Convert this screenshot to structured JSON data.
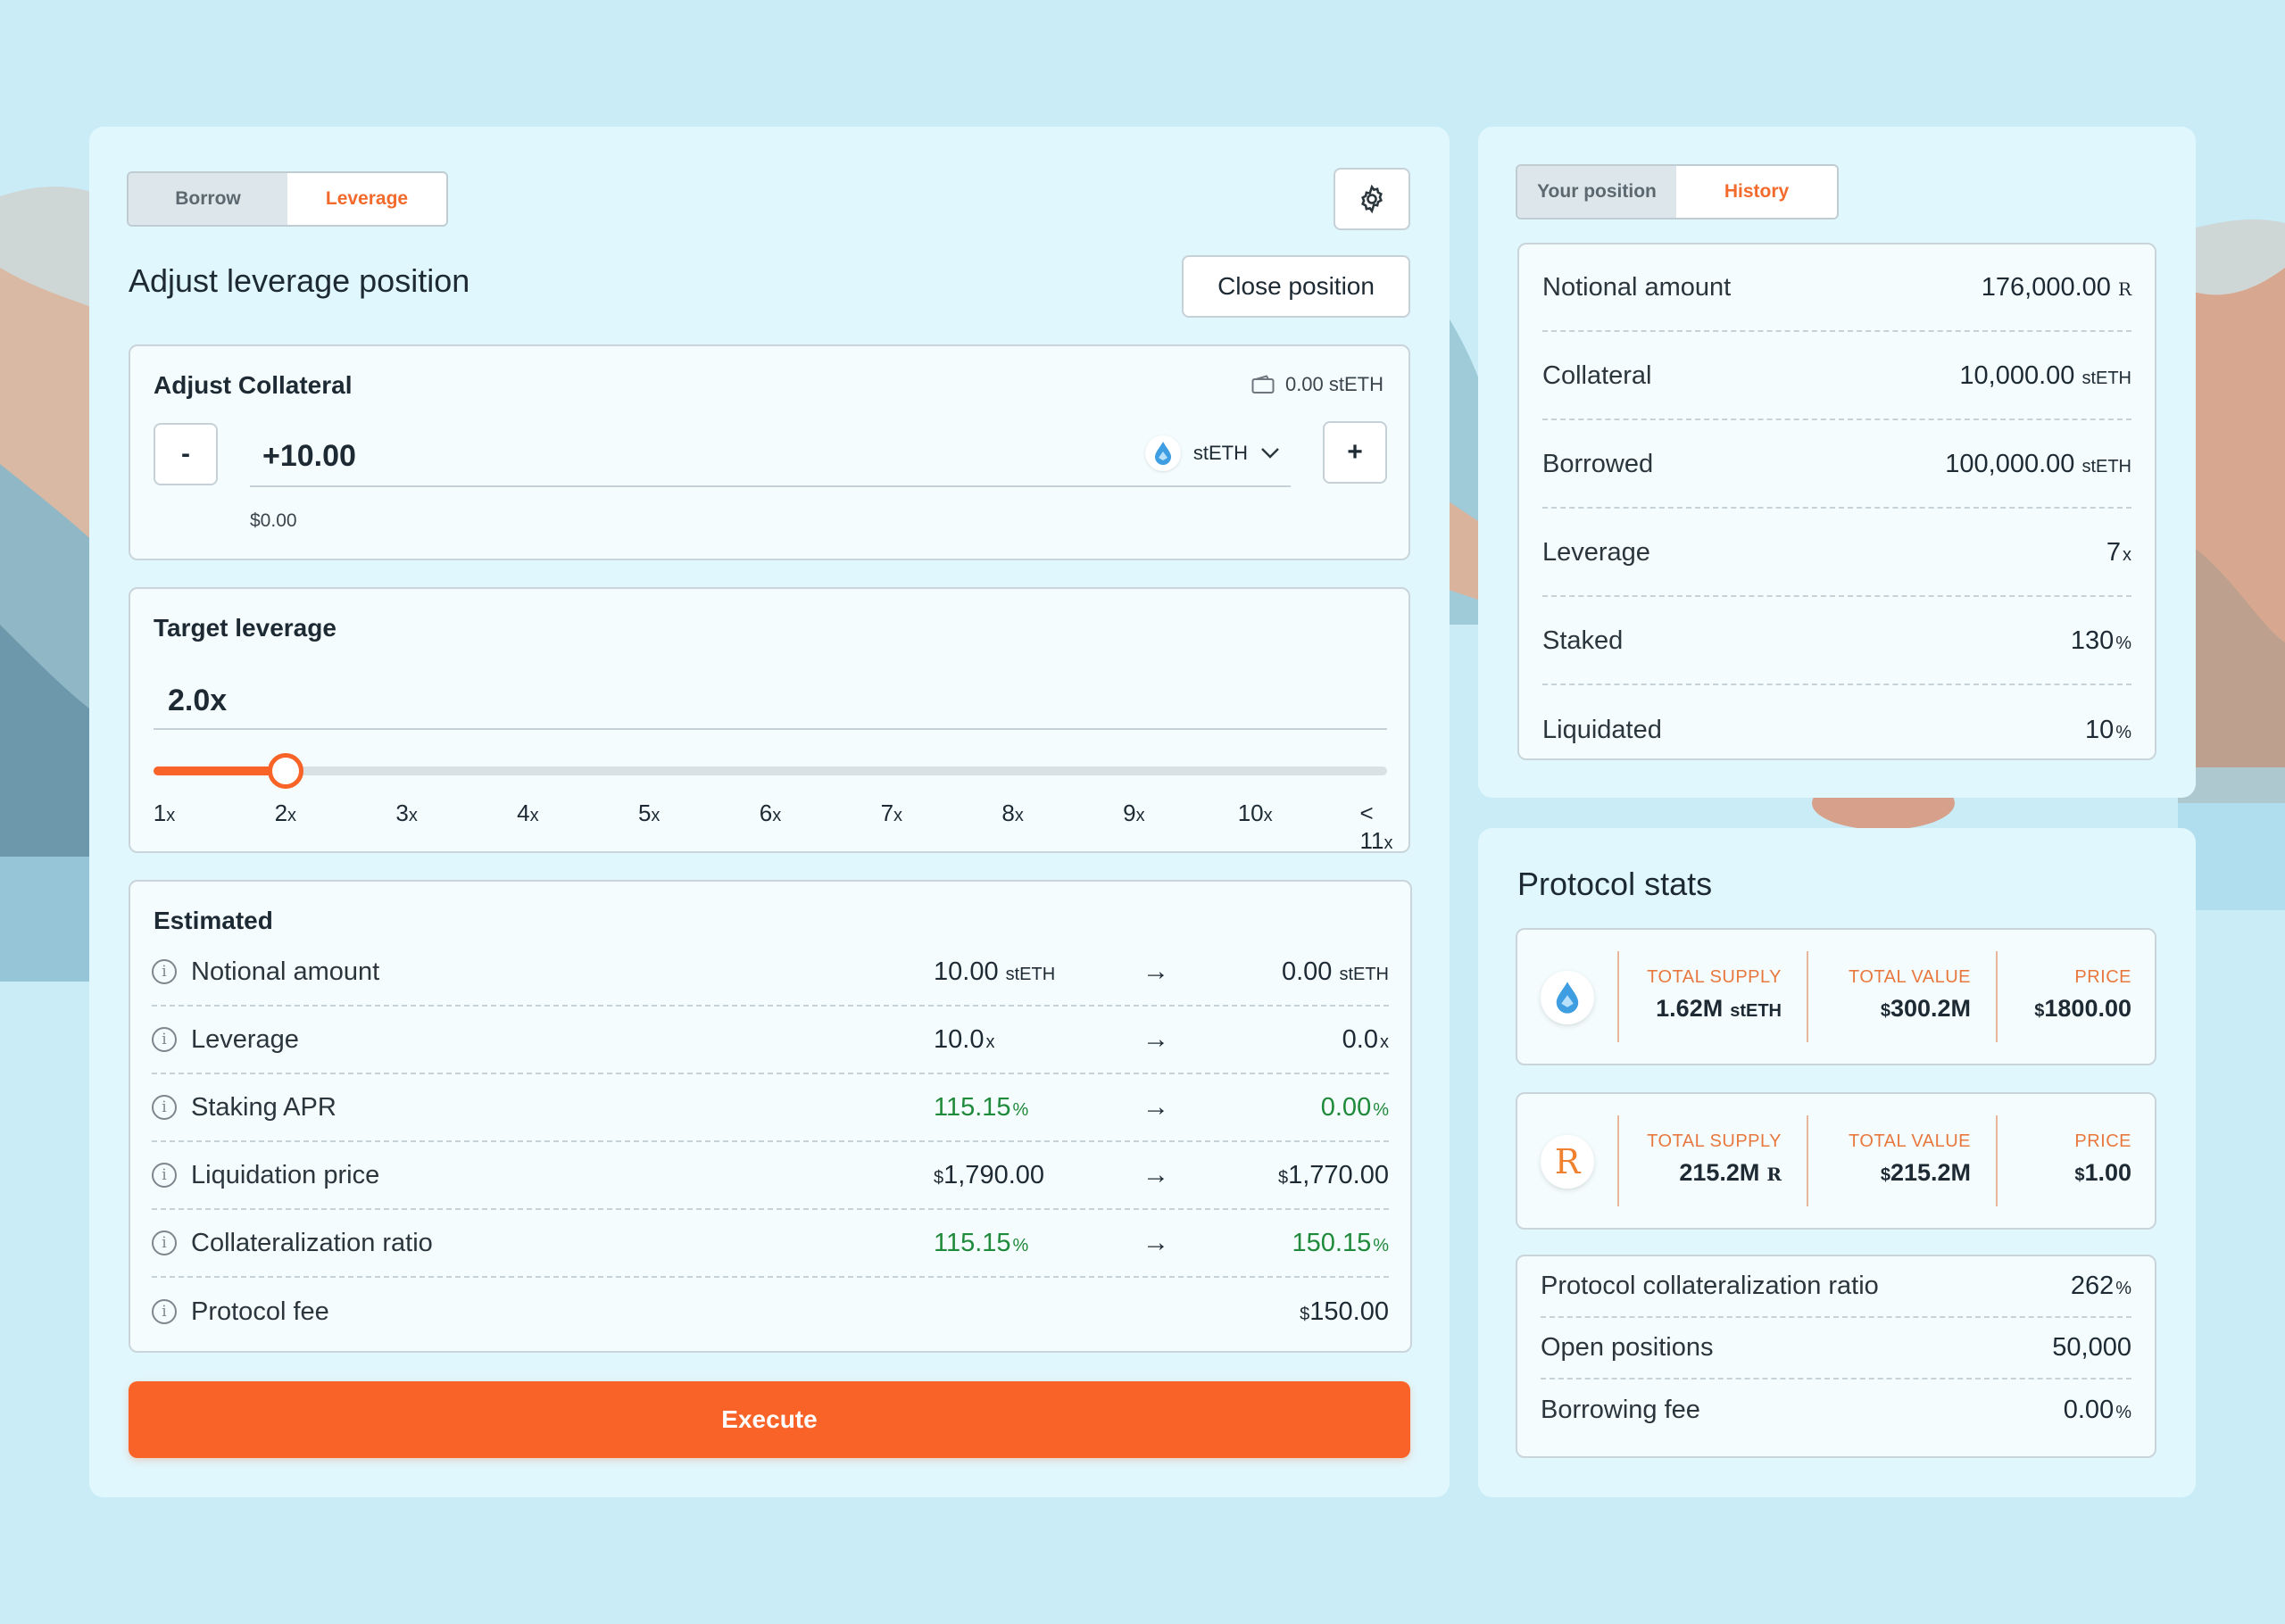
{
  "left_panel": {
    "tabs": [
      {
        "label": "Borrow",
        "active": false
      },
      {
        "label": "Leverage",
        "active": true
      }
    ],
    "title": "Adjust leverage position",
    "close_position_label": "Close position",
    "settings_icon": "gear-icon",
    "adjust_collateral": {
      "title": "Adjust Collateral",
      "wallet_balance": "0.00 stETH",
      "minus_label": "-",
      "plus_label": "+",
      "amount": "+10.00",
      "token": "stETH",
      "usd_value": "$0.00"
    },
    "target_leverage": {
      "title": "Target leverage",
      "value": "2.0x",
      "slider_value": 2,
      "slider_min": 1,
      "slider_max": 11,
      "ticks": [
        {
          "num": "1",
          "unit": "x"
        },
        {
          "num": "2",
          "unit": "x"
        },
        {
          "num": "3",
          "unit": "x"
        },
        {
          "num": "4",
          "unit": "x"
        },
        {
          "num": "5",
          "unit": "x"
        },
        {
          "num": "6",
          "unit": "x"
        },
        {
          "num": "7",
          "unit": "x"
        },
        {
          "num": "8",
          "unit": "x"
        },
        {
          "num": "9",
          "unit": "x"
        },
        {
          "num": "10",
          "unit": "x"
        },
        {
          "num": "< 11",
          "unit": "x"
        }
      ]
    },
    "estimated": {
      "title": "Estimated",
      "rows": [
        {
          "label": "Notional amount",
          "from": "10.00",
          "from_unit": "stETH",
          "to": "0.00",
          "to_unit": "stETH",
          "green": false
        },
        {
          "label": "Leverage",
          "from": "10.0",
          "from_unit": "x",
          "to": "0.0",
          "to_unit": "x",
          "green": false
        },
        {
          "label": "Staking APR",
          "from": "115.15",
          "from_unit": "%",
          "to": "0.00",
          "to_unit": "%",
          "green": true
        },
        {
          "label": "Liquidation price",
          "from": "1,790.00",
          "from_prefix": "$",
          "to": "1,770.00",
          "to_prefix": "$",
          "green": false
        },
        {
          "label": "Collateralization ratio",
          "from": "115.15",
          "from_unit": "%",
          "to": "150.15",
          "to_unit": "%",
          "green": true
        },
        {
          "label": "Protocol fee",
          "to": "150.00",
          "to_prefix": "$",
          "green": false
        }
      ],
      "arrow": "→"
    },
    "execute_label": "Execute"
  },
  "right_panel": {
    "tabs": [
      {
        "label": "Your position",
        "active": false
      },
      {
        "label": "History",
        "active": true
      }
    ],
    "position_rows": [
      {
        "label": "Notional amount",
        "value": "176,000.00",
        "unit": "R"
      },
      {
        "label": "Collateral",
        "value": "10,000.00",
        "unit": "stETH"
      },
      {
        "label": "Borrowed",
        "value": "100,000.00",
        "unit": "stETH"
      },
      {
        "label": "Leverage",
        "value": "7",
        "unit": "x"
      },
      {
        "label": "Staked",
        "value": "130",
        "unit": "%"
      },
      {
        "label": "Liquidated",
        "value": "10",
        "unit": "%"
      }
    ]
  },
  "protocol_stats": {
    "title": "Protocol stats",
    "tokens": [
      {
        "icon": "steth-drop-icon",
        "total_supply_label": "TOTAL SUPPLY",
        "total_supply": "1.62M",
        "total_supply_unit": "stETH",
        "total_value_label": "TOTAL VALUE",
        "total_value": "300.2M",
        "price_label": "PRICE",
        "price": "1800.00"
      },
      {
        "icon": "r-token-icon",
        "icon_glyph": "R",
        "total_supply_label": "TOTAL SUPPLY",
        "total_supply": "215.2M",
        "total_supply_unit": "R",
        "total_value_label": "TOTAL VALUE",
        "total_value": "215.2M",
        "price_label": "PRICE",
        "price": "1.00"
      }
    ],
    "currency_prefix": "$",
    "rows": [
      {
        "label": "Protocol collateralization ratio",
        "value": "262",
        "unit": "%"
      },
      {
        "label": "Open positions",
        "value": "50,000",
        "unit": ""
      },
      {
        "label": "Borrowing fee",
        "value": "0.00",
        "unit": "%"
      }
    ]
  },
  "colors": {
    "accent": "#f96328",
    "green": "#1f8a3a",
    "panel": "#e0f7fd",
    "background": "#c9ecf7"
  }
}
